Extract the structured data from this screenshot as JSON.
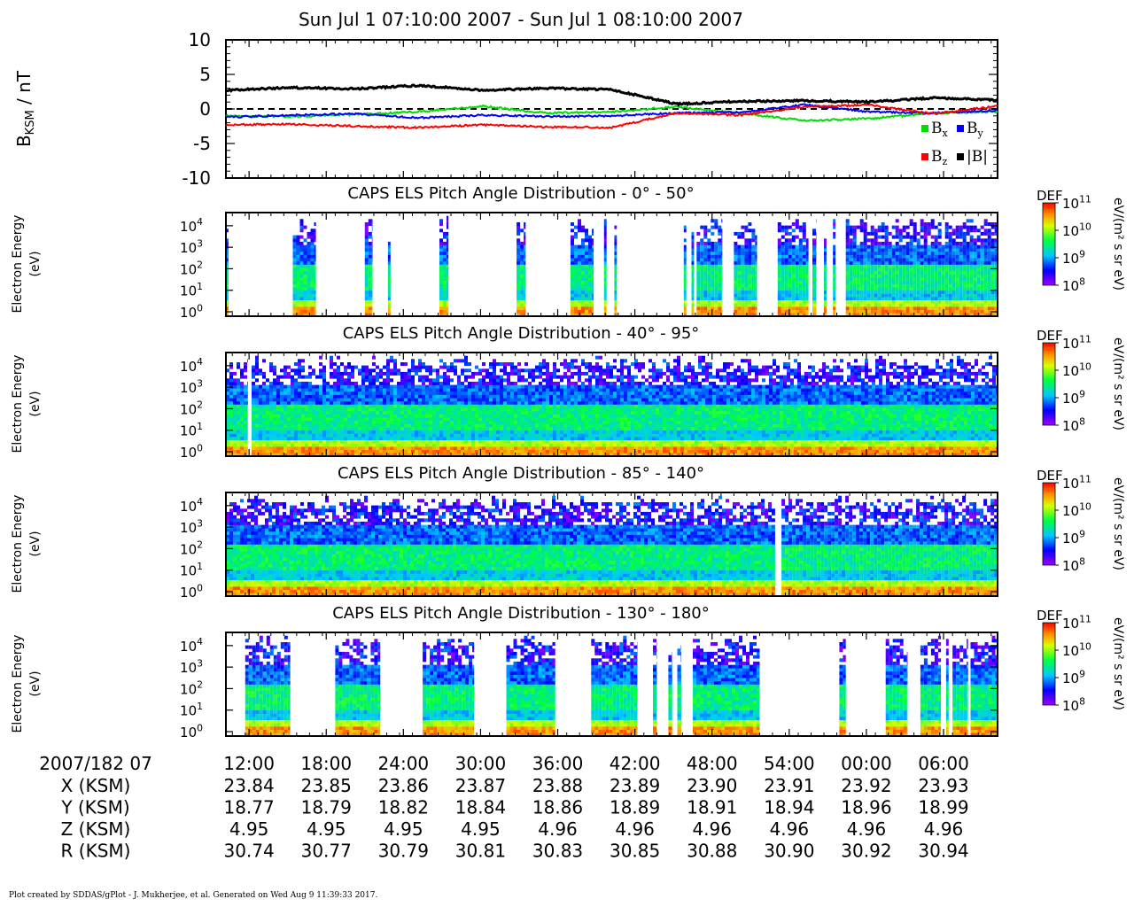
{
  "chart_data": [
    {
      "type": "line",
      "title": "Sun Jul 1 07:10:00 2007 - Sun Jul 1 08:10:00 2007",
      "ylabel_main": "B",
      "ylabel_sub": "KSM",
      "ylabel_unit": " / nT",
      "ylim": [
        -10,
        10
      ],
      "yticks": [
        "10",
        "5",
        "0",
        "-5",
        "-10"
      ],
      "x_minutes": [
        0,
        5,
        10,
        15,
        20,
        25,
        30,
        35,
        40,
        45,
        50,
        55,
        60
      ],
      "series": [
        {
          "name": "Bx",
          "color": "#00dd00",
          "values": [
            -1.0,
            -1.1,
            -0.8,
            -0.4,
            0.4,
            -0.6,
            -0.4,
            0.3,
            -0.6,
            -1.7,
            -1.4,
            -0.6,
            -0.4
          ]
        },
        {
          "name": "By",
          "color": "#0000ff",
          "values": [
            -1.2,
            -0.9,
            -0.7,
            -1.3,
            -0.9,
            -1.1,
            -1.0,
            -0.6,
            -0.5,
            0.6,
            -0.4,
            -0.6,
            -0.2
          ]
        },
        {
          "name": "Bz",
          "color": "#ff0000",
          "values": [
            -2.3,
            -2.2,
            -2.5,
            -2.7,
            -2.3,
            -2.6,
            -2.7,
            -0.6,
            -0.9,
            0.3,
            0.6,
            -0.7,
            0.4
          ]
        },
        {
          "name": "|B|",
          "color": "#000000",
          "values": [
            2.7,
            3.1,
            2.9,
            3.4,
            2.7,
            3.0,
            2.8,
            0.7,
            1.1,
            1.2,
            1.0,
            1.6,
            1.3
          ]
        }
      ],
      "legend": {
        "placement": "bottom-right",
        "entries": [
          "B",
          "B",
          "B",
          "|B|"
        ],
        "subs": [
          "x",
          "y",
          "z",
          ""
        ]
      }
    },
    {
      "type": "heatmap",
      "title": "CAPS ELS Pitch Angle Distribution - 0° - 50°",
      "ylabel": [
        "Electron Energy",
        "(eV)"
      ],
      "yscale": "log",
      "yticks": [
        "10",
        "10",
        "10",
        "10",
        "10"
      ],
      "ytick_exp": [
        "4",
        "3",
        "2",
        "1",
        "0"
      ],
      "colorbar": {
        "label": "DEF",
        "unit": "eV/(m² s sr eV)",
        "ticks": [
          "10",
          "10",
          "10",
          "10"
        ],
        "exps": [
          "11",
          "10",
          "9",
          "8"
        ]
      },
      "data_intervals_min": [
        [
          0.0,
          0.2
        ],
        [
          5.2,
          7.0
        ],
        [
          10.8,
          11.4
        ],
        [
          12.6,
          12.8
        ],
        [
          16.6,
          17.3
        ],
        [
          22.6,
          23.3
        ],
        [
          26.8,
          28.6
        ],
        [
          29.4,
          29.6
        ],
        [
          30.2,
          30.4
        ],
        [
          35.6,
          35.8
        ],
        [
          36.2,
          36.4
        ],
        [
          36.6,
          38.6
        ],
        [
          39.5,
          41.3
        ],
        [
          42.9,
          45.3
        ],
        [
          45.6,
          45.9
        ],
        [
          46.5,
          46.7
        ],
        [
          47.2,
          47.4
        ],
        [
          48.2,
          60.0
        ]
      ]
    },
    {
      "type": "heatmap",
      "title": "CAPS ELS Pitch Angle Distribution - 40° - 95°",
      "ylabel": [
        "Electron Energy",
        "(eV)"
      ],
      "yscale": "log",
      "yticks": [
        "10",
        "10",
        "10",
        "10",
        "10"
      ],
      "ytick_exp": [
        "4",
        "3",
        "2",
        "1",
        "0"
      ],
      "colorbar": {
        "label": "DEF",
        "unit": "eV/(m² s sr eV)",
        "ticks": [
          "10",
          "10",
          "10",
          "10"
        ],
        "exps": [
          "11",
          "10",
          "9",
          "8"
        ]
      },
      "data_intervals_min": [
        [
          0.0,
          1.7
        ],
        [
          2.0,
          60.0
        ]
      ]
    },
    {
      "type": "heatmap",
      "title": "CAPS ELS Pitch Angle Distribution - 85° - 140°",
      "ylabel": [
        "Electron Energy",
        "(eV)"
      ],
      "yscale": "log",
      "yticks": [
        "10",
        "10",
        "10",
        "10",
        "10"
      ],
      "ytick_exp": [
        "4",
        "3",
        "2",
        "1",
        "0"
      ],
      "colorbar": {
        "label": "DEF",
        "unit": "eV/(m² s sr eV)",
        "ticks": [
          "10",
          "10",
          "10",
          "10"
        ],
        "exps": [
          "11",
          "10",
          "9",
          "8"
        ]
      },
      "data_intervals_min": [
        [
          0.0,
          42.7
        ],
        [
          43.2,
          60.0
        ]
      ]
    },
    {
      "type": "heatmap",
      "title": "CAPS ELS Pitch Angle Distribution - 130° - 180°",
      "ylabel": [
        "Electron Energy",
        "(eV)"
      ],
      "yscale": "log",
      "yticks": [
        "10",
        "10",
        "10",
        "10",
        "10"
      ],
      "ytick_exp": [
        "4",
        "3",
        "2",
        "1",
        "0"
      ],
      "colorbar": {
        "label": "DEF",
        "unit": "eV/(m² s sr eV)",
        "ticks": [
          "10",
          "10",
          "10",
          "10"
        ],
        "exps": [
          "11",
          "10",
          "9",
          "8"
        ]
      },
      "data_intervals_min": [
        [
          1.5,
          5.0
        ],
        [
          8.5,
          12.0
        ],
        [
          15.3,
          19.3
        ],
        [
          21.8,
          25.6
        ],
        [
          28.4,
          32.0
        ],
        [
          33.2,
          33.5
        ],
        [
          34.4,
          34.7
        ],
        [
          35.1,
          35.4
        ],
        [
          36.3,
          41.5
        ],
        [
          47.7,
          48.2
        ],
        [
          51.3,
          53.0
        ],
        [
          54.0,
          55.6
        ],
        [
          56.0,
          56.2
        ],
        [
          56.5,
          57.7
        ],
        [
          57.9,
          60.0
        ]
      ]
    }
  ],
  "ephemeris": {
    "date_label": "2007/182 07",
    "times": [
      "12:00",
      "18:00",
      "24:00",
      "30:00",
      "36:00",
      "42:00",
      "48:00",
      "54:00",
      "00:00",
      "06:00"
    ],
    "rows": [
      {
        "label": "X (KSM)",
        "values": [
          "23.84",
          "23.85",
          "23.86",
          "23.87",
          "23.88",
          "23.89",
          "23.90",
          "23.91",
          "23.92",
          "23.93"
        ]
      },
      {
        "label": "Y (KSM)",
        "values": [
          "18.77",
          "18.79",
          "18.82",
          "18.84",
          "18.86",
          "18.89",
          "18.91",
          "18.94",
          "18.96",
          "18.99"
        ]
      },
      {
        "label": "Z (KSM)",
        "values": [
          "4.95",
          "4.95",
          "4.95",
          "4.95",
          "4.96",
          "4.96",
          "4.96",
          "4.96",
          "4.96",
          "4.96"
        ]
      },
      {
        "label": "R (KSM)",
        "values": [
          "30.74",
          "30.77",
          "30.79",
          "30.81",
          "30.83",
          "30.85",
          "30.88",
          "30.90",
          "30.92",
          "30.94"
        ]
      }
    ]
  },
  "footer": "Plot created by SDDAS/gPlot - J. Mukherjee, et al.  Generated on Wed Aug 9 11:39:33 2017."
}
